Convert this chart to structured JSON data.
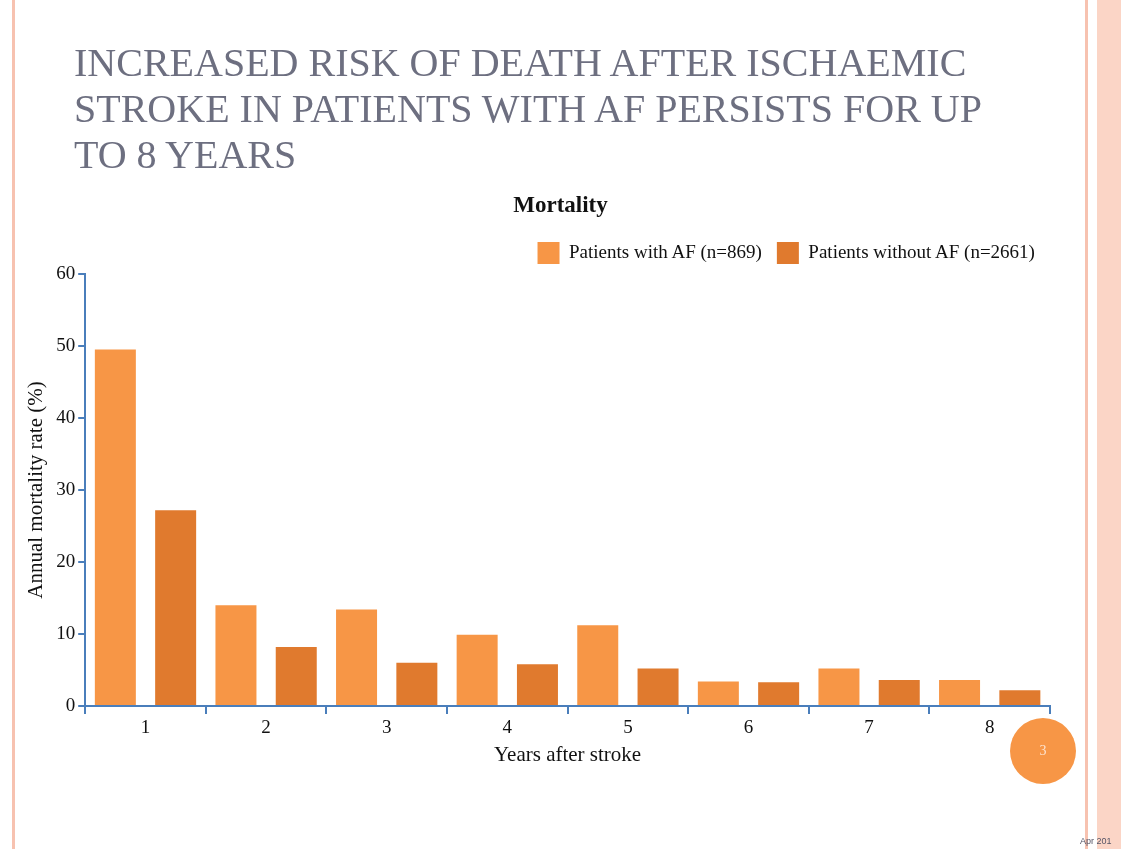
{
  "chart_data": {
    "type": "bar",
    "title": "INCREASED RISK OF DEATH AFTER ISCHAEMIC STROKE IN PATIENTS WITH AF PERSISTS FOR UP TO 8 YEARS",
    "subtitle": "Mortality",
    "xlabel": "Years after stroke",
    "ylabel": "Annual mortality rate (%)",
    "categories": [
      "1",
      "2",
      "3",
      "4",
      "5",
      "6",
      "7",
      "8"
    ],
    "series": [
      {
        "name": "Patients with AF (n=869)",
        "color": "#f79646",
        "values": [
          49.5,
          14.0,
          13.4,
          9.9,
          11.2,
          3.4,
          5.2,
          3.6
        ]
      },
      {
        "name": "Patients without AF (n=2661)",
        "color": "#e07a2e",
        "values": [
          27.2,
          8.2,
          6.0,
          5.8,
          5.2,
          3.3,
          3.6,
          2.2
        ]
      }
    ],
    "ylim": [
      0,
      60
    ],
    "yticks": [
      0,
      10,
      20,
      30,
      40,
      50,
      60
    ],
    "grid": false,
    "legend": "top right",
    "annotations": [
      "3",
      "Apr 201"
    ]
  }
}
